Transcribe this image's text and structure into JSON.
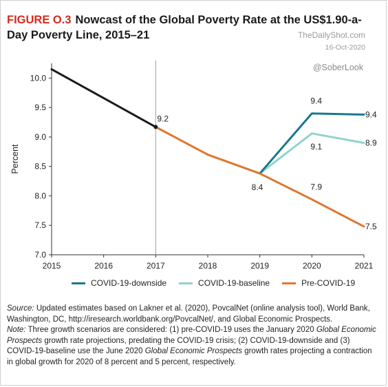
{
  "header": {
    "figure_label": "FIGURE O.3",
    "title": "Nowcast of the Global Poverty Rate at the US$1.90-a-Day Poverty Line, 2015–21"
  },
  "watermark": {
    "site": "TheDailyShot.com",
    "date": "16-Oct-2020",
    "handle": "@SoberLook"
  },
  "chart_data": {
    "type": "line",
    "title": "Nowcast of the Global Poverty Rate at the US$1.90-a-Day Poverty Line, 2015–21",
    "xlabel": "",
    "ylabel": "Percent",
    "xlim": [
      2015,
      2021
    ],
    "ylim": [
      7.0,
      10.0
    ],
    "yticks": [
      "7.0",
      "7.5",
      "8.0",
      "8.5",
      "9.0",
      "9.5",
      "10.0"
    ],
    "xticks": [
      "2015",
      "2016",
      "2017",
      "2018",
      "2019",
      "2020",
      "2021"
    ],
    "vertical_line_x": 2017,
    "grid": false,
    "legend_position": "bottom",
    "history": {
      "color": "#1a1a1a",
      "x": [
        2015,
        2016,
        2017
      ],
      "y": [
        10.15,
        9.66,
        9.17
      ]
    },
    "series": [
      {
        "name": "COVID-19-downside",
        "color": "#17788e",
        "x": [
          2019,
          2020,
          2021
        ],
        "y": [
          8.38,
          9.4,
          9.38
        ]
      },
      {
        "name": "COVID-19-baseline",
        "color": "#8fd3cf",
        "x": [
          2019,
          2020,
          2021
        ],
        "y": [
          8.38,
          9.06,
          8.9
        ]
      },
      {
        "name": "Pre-COVID-19",
        "color": "#e0762c",
        "x": [
          2017,
          2018,
          2019,
          2020,
          2021
        ],
        "y": [
          9.17,
          8.7,
          8.38,
          7.94,
          7.48
        ]
      }
    ],
    "annotations": [
      {
        "text": "9.2",
        "x": 2017,
        "y": 9.17
      },
      {
        "text": "8.4",
        "x": 2019,
        "y": 8.38
      },
      {
        "text": "9.4",
        "x": 2020,
        "y": 9.4
      },
      {
        "text": "9.1",
        "x": 2020,
        "y": 9.06
      },
      {
        "text": "7.9",
        "x": 2020,
        "y": 7.94
      },
      {
        "text": "9.4",
        "x": 2021,
        "y": 9.38
      },
      {
        "text": "8.9",
        "x": 2021,
        "y": 8.9
      },
      {
        "text": "7.5",
        "x": 2021,
        "y": 7.48
      }
    ]
  },
  "legend": [
    {
      "label": "COVID-19-downside",
      "color": "#17788e"
    },
    {
      "label": "COVID-19-baseline",
      "color": "#8fd3cf"
    },
    {
      "label": "Pre-COVID-19",
      "color": "#e0762c"
    }
  ],
  "footer": {
    "source_label": "Source:",
    "source_text": " Updated estimates based on Lakner et al. (2020), PovcalNet (online analysis tool), World Bank, Washington, DC, http://iresearch.worldbank.org/PovcalNet/, and Global Economic Prospects.",
    "note_label": "Note:",
    "note_part1": " Three growth scenarios are considered: (1) pre-COVID-19 uses the January 2020 ",
    "note_gep": "Global Economic Prospects",
    "note_part2": " growth rate projections, predating the COVID-19 crisis; (2) COVID-19-downside and (3) COVID-19-baseline use the June 2020 ",
    "note_part3": " growth rates projecting a contraction in global growth for 2020 of 8 percent and 5 percent, respectively."
  }
}
